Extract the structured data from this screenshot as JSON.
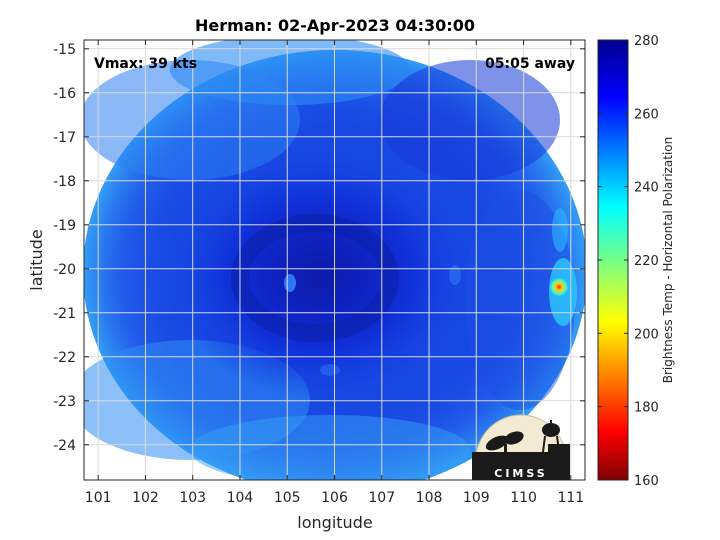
{
  "chart_data": {
    "type": "heatmap",
    "title": "Herman: 02-Apr-2023 04:30:00",
    "xlabel": "longitude",
    "ylabel": "latitude",
    "xlim": [
      100.7,
      111.3
    ],
    "ylim": [
      -24.8,
      -14.8
    ],
    "x_ticks": [
      101,
      102,
      103,
      104,
      105,
      106,
      107,
      108,
      109,
      110,
      111
    ],
    "y_ticks": [
      -15,
      -16,
      -17,
      -18,
      -19,
      -20,
      -21,
      -22,
      -23,
      -24
    ],
    "grid": true,
    "annotations": {
      "vmax": "Vmax: 39 kts",
      "time_away": "05:05 away"
    },
    "colorbar": {
      "label": "Brightness Temp - Horizontal Polarization",
      "min": 160,
      "max": 280,
      "ticks": [
        280,
        260,
        240,
        220,
        200,
        180,
        160
      ],
      "colormap": "jet",
      "placement": "right"
    },
    "field": {
      "center": [
        106.0,
        -20.2
      ],
      "extent_lon": [
        100.7,
        111.3
      ],
      "extent_lat": [
        -24.8,
        -14.8
      ],
      "core_value": 268,
      "edge_value": 250,
      "warm_spot": {
        "lon": 110.8,
        "lat": -20.4,
        "value": 195
      }
    },
    "logo": "CIMSS"
  },
  "colors": {
    "axis": "#262626",
    "grid": "#d9d9d9",
    "background": "#ffffff",
    "logo_bg": "#f3ead3",
    "logo_fg": "#1a1a1a"
  }
}
